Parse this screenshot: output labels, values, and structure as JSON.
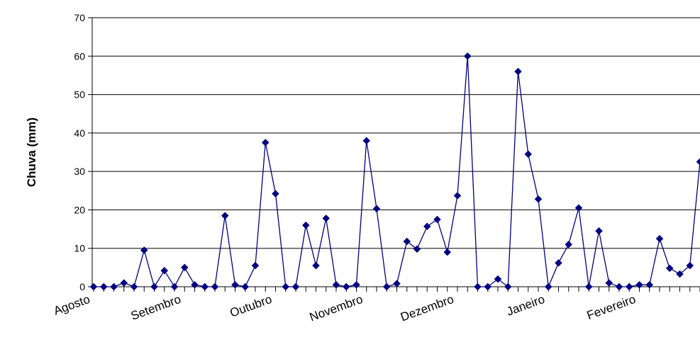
{
  "chart_data": {
    "type": "line",
    "title": "",
    "ylabel": "Chuva (mm)",
    "xlabel": "",
    "ylim": [
      0,
      70
    ],
    "yticks": [
      0,
      10,
      20,
      30,
      40,
      50,
      60,
      70
    ],
    "grid": "horizontal",
    "legend": "none",
    "month_labels": [
      {
        "label": "Agosto",
        "index": 0
      },
      {
        "label": "Setembro",
        "index": 9
      },
      {
        "label": "Outubro",
        "index": 18
      },
      {
        "label": "Novembro",
        "index": 27
      },
      {
        "label": "Dezembro",
        "index": 36
      },
      {
        "label": "Janeiro",
        "index": 45
      },
      {
        "label": "Fevereiro",
        "index": 54
      }
    ],
    "series": [
      {
        "color": "#000080",
        "values": [
          0,
          0,
          0,
          1,
          0,
          9.5,
          0,
          4.2,
          0,
          5,
          0.5,
          0,
          0,
          18.5,
          0.5,
          0,
          5.5,
          37.5,
          24.2,
          0,
          0,
          16,
          5.5,
          17.8,
          0.5,
          0,
          0.5,
          38,
          20.3,
          0,
          0.8,
          11.8,
          9.8,
          15.7,
          17.5,
          9,
          23.7,
          60,
          0,
          0,
          2,
          0,
          56,
          34.5,
          22.8,
          0,
          6.2,
          11,
          20.5,
          0,
          14.5,
          1,
          0,
          0,
          0.5,
          0.5,
          12.5,
          4.8,
          3.3,
          5.5,
          32.5
        ]
      }
    ]
  }
}
